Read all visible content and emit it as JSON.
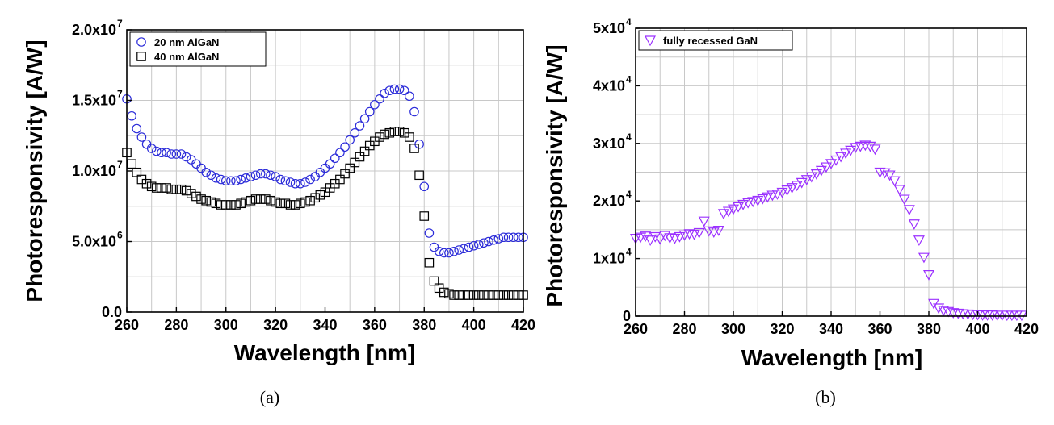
{
  "chart_data": [
    {
      "type": "scatter",
      "panel_label": "(a)",
      "xlabel": "Wavelength [nm]",
      "ylabel": "Photoresponsivity [A/W]",
      "xlim": [
        260,
        420
      ],
      "ylim": [
        0,
        20000000
      ],
      "x_ticks": [
        260,
        280,
        300,
        320,
        340,
        360,
        380,
        400,
        420
      ],
      "x_tick_labels": [
        "260",
        "280",
        "300",
        "320",
        "340",
        "360",
        "380",
        "400",
        "420"
      ],
      "y_ticks": [
        0,
        5000000,
        10000000,
        15000000,
        20000000
      ],
      "y_tick_labels": [
        {
          "mant": "0.0",
          "exp": ""
        },
        {
          "mant": "5.0x10",
          "exp": "6"
        },
        {
          "mant": "1.0x10",
          "exp": "7"
        },
        {
          "mant": "1.5x10",
          "exp": "7"
        },
        {
          "mant": "2.0x10",
          "exp": "7"
        }
      ],
      "grid": true,
      "legend_position": "top-left",
      "series": [
        {
          "name": "20 nm AlGaN",
          "marker": "circle",
          "color": "#2b2bd9",
          "x": [
            260,
            262,
            264,
            266,
            268,
            270,
            272,
            274,
            276,
            278,
            280,
            282,
            284,
            286,
            288,
            290,
            292,
            294,
            296,
            298,
            300,
            302,
            304,
            306,
            308,
            310,
            312,
            314,
            316,
            318,
            320,
            322,
            324,
            326,
            328,
            330,
            332,
            334,
            336,
            338,
            340,
            342,
            344,
            346,
            348,
            350,
            352,
            354,
            356,
            358,
            360,
            362,
            364,
            366,
            368,
            370,
            372,
            374,
            376,
            378,
            380,
            382,
            384,
            386,
            388,
            390,
            392,
            394,
            396,
            398,
            400,
            402,
            404,
            406,
            408,
            410,
            412,
            414,
            416,
            418,
            420
          ],
          "y": [
            15100000,
            13900000,
            13000000,
            12400000,
            11900000,
            11600000,
            11400000,
            11300000,
            11300000,
            11200000,
            11200000,
            11200000,
            11000000,
            10800000,
            10500000,
            10200000,
            9900000,
            9700000,
            9500000,
            9400000,
            9300000,
            9300000,
            9300000,
            9400000,
            9500000,
            9600000,
            9700000,
            9800000,
            9800000,
            9700000,
            9600000,
            9400000,
            9300000,
            9200000,
            9100000,
            9100000,
            9200000,
            9400000,
            9600000,
            9900000,
            10200000,
            10500000,
            10900000,
            11300000,
            11700000,
            12200000,
            12700000,
            13200000,
            13700000,
            14200000,
            14700000,
            15100000,
            15500000,
            15700000,
            15800000,
            15800000,
            15700000,
            15300000,
            14200000,
            11900000,
            8900000,
            5600000,
            4600000,
            4300000,
            4200000,
            4200000,
            4300000,
            4400000,
            4500000,
            4600000,
            4700000,
            4800000,
            4900000,
            5000000,
            5100000,
            5200000,
            5300000,
            5300000,
            5300000,
            5300000,
            5300000
          ]
        },
        {
          "name": "40 nm AlGaN",
          "marker": "square",
          "color": "#000000",
          "x": [
            260,
            262,
            264,
            266,
            268,
            270,
            272,
            274,
            276,
            278,
            280,
            282,
            284,
            286,
            288,
            290,
            292,
            294,
            296,
            298,
            300,
            302,
            304,
            306,
            308,
            310,
            312,
            314,
            316,
            318,
            320,
            322,
            324,
            326,
            328,
            330,
            332,
            334,
            336,
            338,
            340,
            342,
            344,
            346,
            348,
            350,
            352,
            354,
            356,
            358,
            360,
            362,
            364,
            366,
            368,
            370,
            372,
            374,
            376,
            378,
            380,
            382,
            384,
            386,
            388,
            390,
            392,
            394,
            396,
            398,
            400,
            402,
            404,
            406,
            408,
            410,
            412,
            414,
            416,
            418,
            420
          ],
          "y": [
            11300000,
            10500000,
            9900000,
            9400000,
            9100000,
            8900000,
            8800000,
            8800000,
            8800000,
            8700000,
            8700000,
            8700000,
            8600000,
            8400000,
            8200000,
            8000000,
            7900000,
            7800000,
            7700000,
            7600000,
            7600000,
            7600000,
            7600000,
            7700000,
            7800000,
            7900000,
            8000000,
            8000000,
            8000000,
            7900000,
            7800000,
            7700000,
            7700000,
            7600000,
            7600000,
            7700000,
            7800000,
            7900000,
            8100000,
            8300000,
            8500000,
            8800000,
            9100000,
            9400000,
            9800000,
            10200000,
            10600000,
            11000000,
            11400000,
            11800000,
            12100000,
            12400000,
            12600000,
            12700000,
            12800000,
            12800000,
            12700000,
            12400000,
            11600000,
            9700000,
            6800000,
            3500000,
            2200000,
            1700000,
            1400000,
            1300000,
            1200000,
            1200000,
            1200000,
            1200000,
            1200000,
            1200000,
            1200000,
            1200000,
            1200000,
            1200000,
            1200000,
            1200000,
            1200000,
            1200000,
            1200000
          ]
        }
      ]
    },
    {
      "type": "scatter",
      "panel_label": "(b)",
      "xlabel": "Wavelength [nm]",
      "ylabel": "Photoresponsivity [A/W]",
      "xlim": [
        260,
        420
      ],
      "ylim": [
        0,
        50000
      ],
      "x_ticks": [
        260,
        280,
        300,
        320,
        340,
        360,
        380,
        400,
        420
      ],
      "x_tick_labels": [
        "260",
        "280",
        "300",
        "320",
        "340",
        "360",
        "380",
        "400",
        "420"
      ],
      "y_ticks": [
        0,
        10000,
        20000,
        30000,
        40000,
        50000
      ],
      "y_tick_labels": [
        {
          "mant": "0",
          "exp": ""
        },
        {
          "mant": "1x10",
          "exp": "4"
        },
        {
          "mant": "2x10",
          "exp": "4"
        },
        {
          "mant": "3x10",
          "exp": "4"
        },
        {
          "mant": "4x10",
          "exp": "4"
        },
        {
          "mant": "5x10",
          "exp": "4"
        }
      ],
      "grid": true,
      "legend_position": "top-left",
      "series": [
        {
          "name": "fully recessed GaN",
          "marker": "triangle-down",
          "color": "#9b30ff",
          "x": [
            260,
            262,
            264,
            266,
            268,
            270,
            272,
            274,
            276,
            278,
            280,
            282,
            284,
            286,
            288,
            290,
            292,
            294,
            296,
            298,
            300,
            302,
            304,
            306,
            308,
            310,
            312,
            314,
            316,
            318,
            320,
            322,
            324,
            326,
            328,
            330,
            332,
            334,
            336,
            338,
            340,
            342,
            344,
            346,
            348,
            350,
            352,
            354,
            356,
            358,
            360,
            362,
            364,
            366,
            368,
            370,
            372,
            374,
            376,
            378,
            380,
            382,
            384,
            386,
            388,
            390,
            392,
            394,
            396,
            398,
            400,
            402,
            404,
            406,
            408,
            410,
            412,
            414,
            416,
            418
          ],
          "y": [
            13500,
            13700,
            13900,
            13200,
            13800,
            13400,
            14000,
            13600,
            13500,
            13800,
            14100,
            14300,
            14200,
            14500,
            16500,
            14800,
            14600,
            14900,
            17800,
            18200,
            18600,
            19000,
            19400,
            19700,
            19900,
            20100,
            20400,
            20700,
            21000,
            21200,
            21500,
            21900,
            22300,
            22700,
            23200,
            23700,
            24200,
            24700,
            25300,
            25900,
            26500,
            27100,
            27700,
            28300,
            28800,
            29300,
            29500,
            29700,
            29500,
            29000,
            25000,
            24900,
            24500,
            23500,
            22000,
            20300,
            18500,
            16000,
            13200,
            10200,
            7200,
            2200,
            1400,
            1000,
            800,
            600,
            500,
            400,
            350,
            300,
            250,
            200,
            200,
            200,
            150,
            150,
            150,
            150,
            150,
            150
          ]
        }
      ]
    }
  ]
}
